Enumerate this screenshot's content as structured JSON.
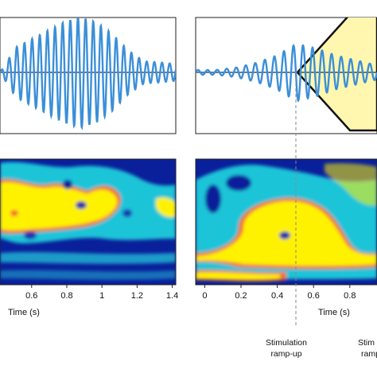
{
  "chart_data": [
    {
      "type": "line",
      "panel": "top-left",
      "series": [
        {
          "values": [
            0,
            0.45,
            0.6,
            0.75,
            0.9,
            1.0,
            0.9,
            0.7,
            0.4,
            0.2,
            0.18,
            0.15
          ]
        }
      ],
      "color": "#3b8fd8"
    },
    {
      "type": "line",
      "panel": "top-right",
      "series": [
        {
          "values": [
            0.05,
            0.05,
            0.1,
            0.2,
            0.35,
            0.6,
            0.5,
            0.35,
            0.25,
            0.15
          ]
        }
      ],
      "color": "#3b8fd8",
      "fill_color": "#fff7b0"
    },
    {
      "type": "heatmap",
      "panel": "bottom-left",
      "xlabel": "Time (s)",
      "x_ticks": [
        "0.6",
        "0.8",
        "1",
        "1.2",
        "1.4"
      ],
      "x_tick_values": [
        0.6,
        0.8,
        1.0,
        1.2,
        1.4
      ],
      "xlim": [
        0.42,
        1.42
      ],
      "colors": {
        "low": "#0a1f9a",
        "mid": "#1fc4d8",
        "high": "#fff200",
        "edge": "#f26d2b"
      }
    },
    {
      "type": "heatmap",
      "panel": "bottom-right",
      "xlabel": "Time (s)",
      "x_ticks": [
        "0",
        "0.2",
        "0.4",
        "0.6",
        "0.8"
      ],
      "x_tick_values": [
        0,
        0.2,
        0.4,
        0.6,
        0.8
      ],
      "xlim": [
        -0.05,
        0.95
      ],
      "colors": {
        "low": "#0a1f9a",
        "mid": "#1fc4d8",
        "high": "#fff200",
        "edge": "#f26d2b"
      }
    }
  ],
  "annotations": {
    "stim_up_line1": "Stimulation",
    "stim_up_line2": "ramp-up",
    "stim_down_line1": "Stim",
    "stim_down_line2": "ramp"
  }
}
